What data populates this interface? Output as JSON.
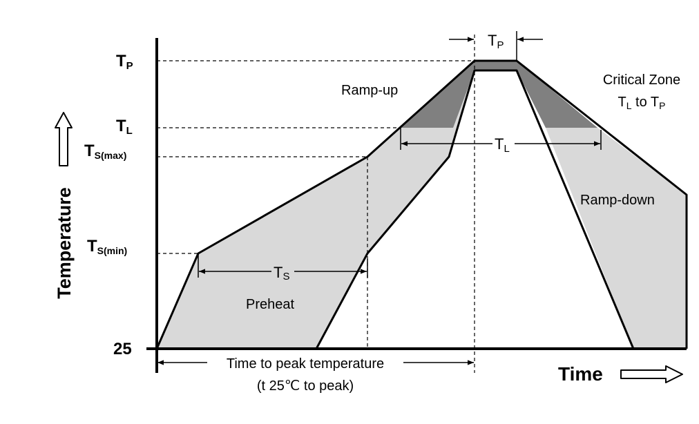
{
  "axes": {
    "y_label": "Temperature",
    "x_label": "Time",
    "y_ticks": {
      "tp": {
        "main": "T",
        "sub": "P"
      },
      "tl": {
        "main": "T",
        "sub": "L"
      },
      "ts_max": {
        "main": "T",
        "sub": "S(max)"
      },
      "ts_min": {
        "main": "T",
        "sub": "S(min)"
      },
      "t25": "25"
    }
  },
  "regions": {
    "ramp_up": "Ramp-up",
    "ramp_down": "Ramp-down",
    "preheat": "Preheat",
    "critical_zone": {
      "line1": "Critical Zone",
      "line2_a": "T",
      "line2_a_sub": "L",
      "line2_mid": " to T",
      "line2_b_sub": "P"
    }
  },
  "dimensions": {
    "tp_width": {
      "main": "T",
      "sub": "P"
    },
    "tl_width": {
      "main": "T",
      "sub": "L"
    },
    "ts_width": {
      "main": "T",
      "sub": "S"
    },
    "time_to_peak": {
      "line1": "Time to peak temperature",
      "line2": "(t 25℃ to peak)"
    }
  },
  "colors": {
    "band_fill": "#d9d9d9",
    "critical_fill": "#808080",
    "line": "#000000"
  }
}
